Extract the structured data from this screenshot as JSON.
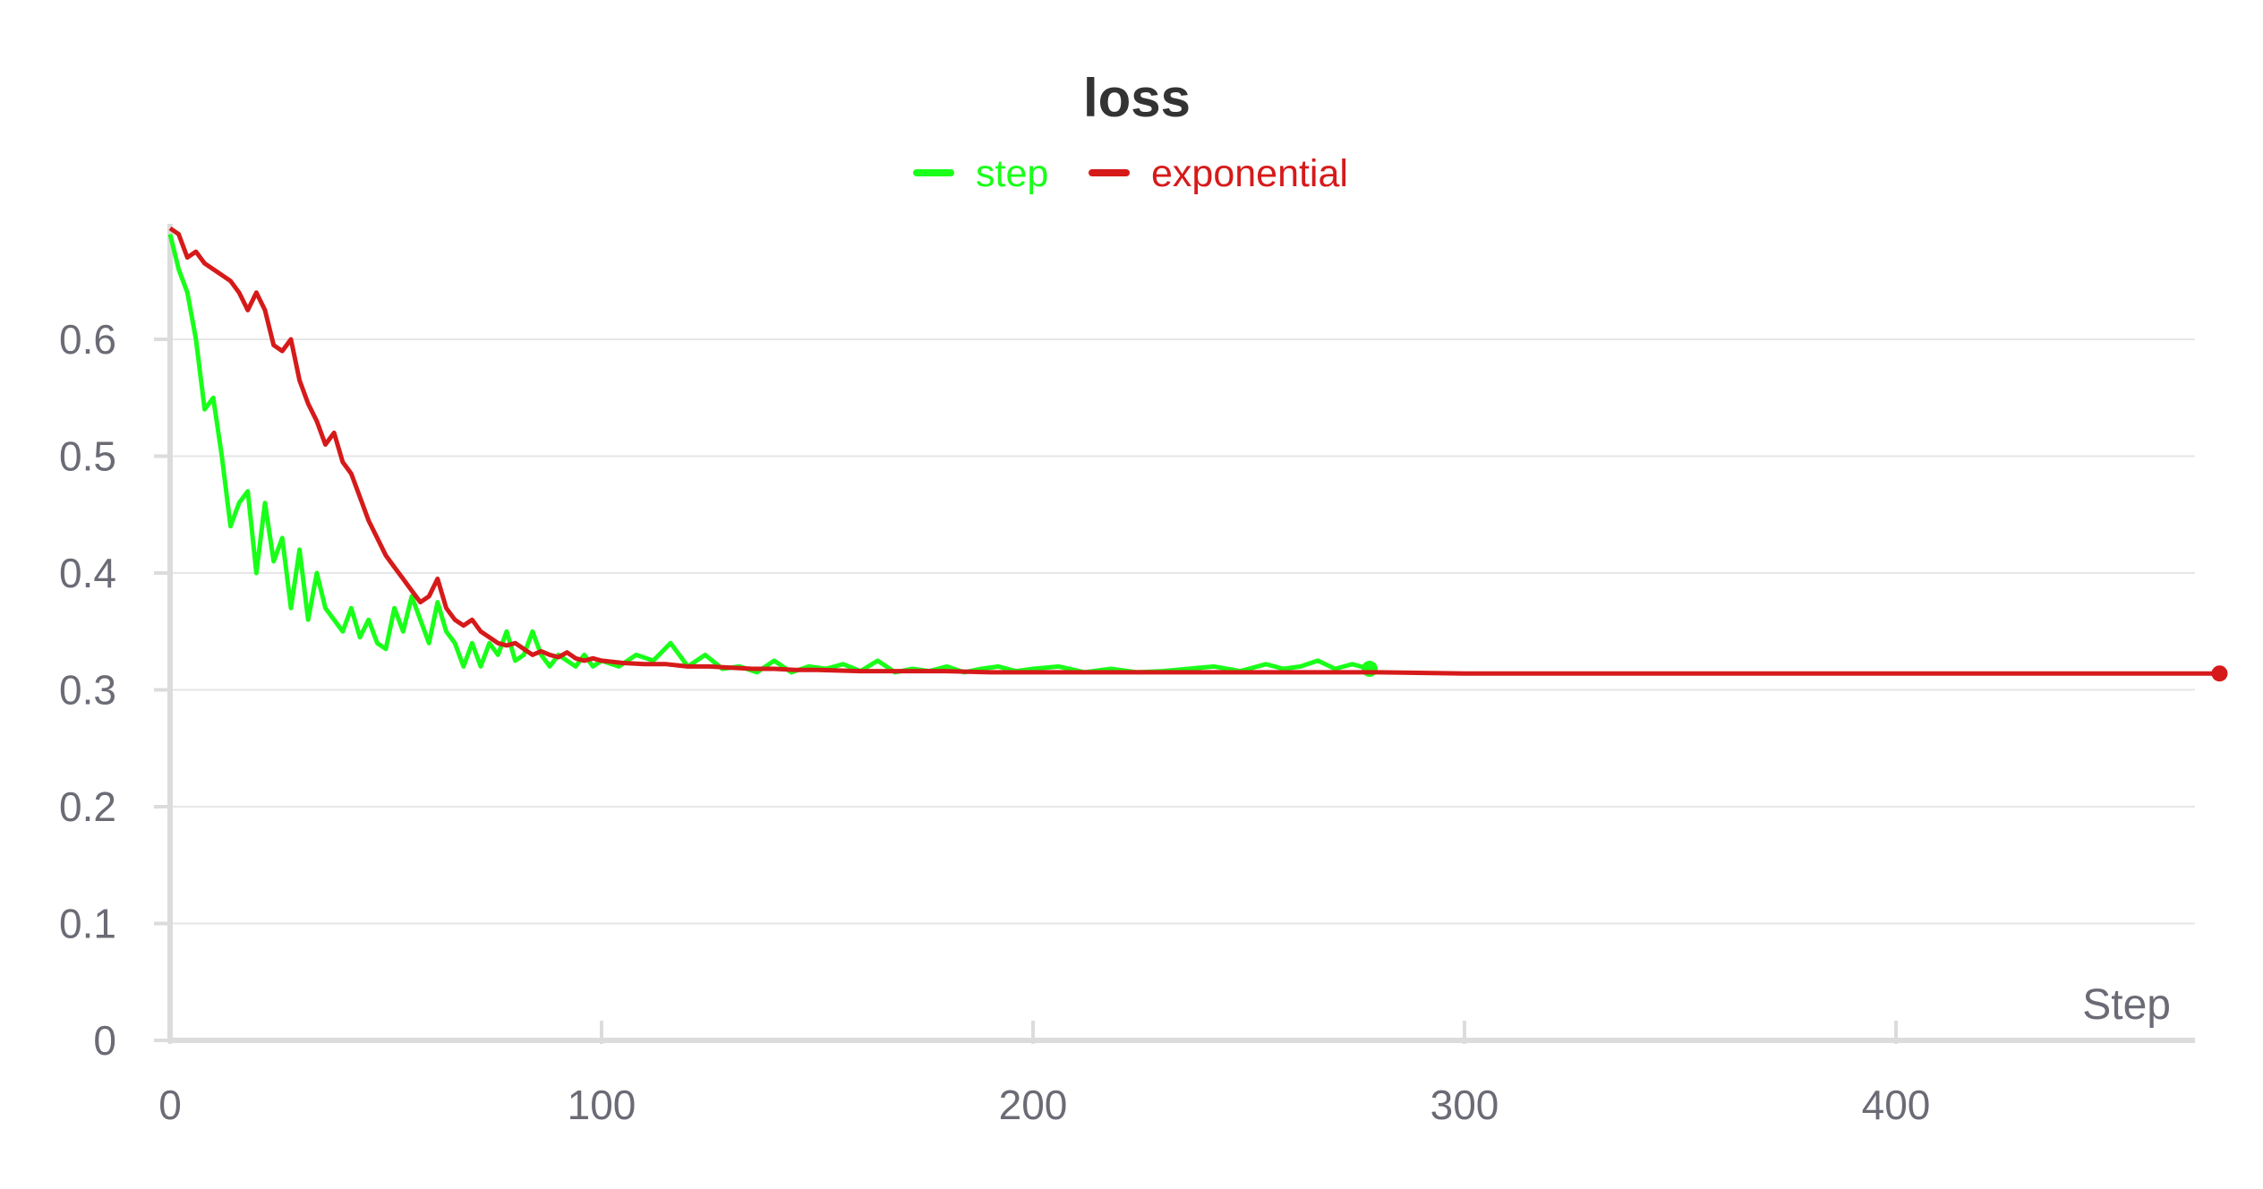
{
  "chart_data": {
    "type": "line",
    "title": "loss",
    "xlabel": "Step",
    "ylabel": "",
    "xlim": [
      0,
      475
    ],
    "ylim": [
      0,
      0.7
    ],
    "x_ticks": [
      0,
      100,
      200,
      300,
      400
    ],
    "y_ticks": [
      0,
      0.1,
      0.2,
      0.3,
      0.4,
      0.5,
      0.6
    ],
    "grid": true,
    "legend_position": "top-center",
    "series": [
      {
        "name": "step",
        "color": "#19ff19",
        "end_marker": true,
        "x": [
          0,
          2,
          4,
          6,
          8,
          10,
          12,
          14,
          16,
          18,
          20,
          22,
          24,
          26,
          28,
          30,
          32,
          34,
          36,
          38,
          40,
          42,
          44,
          46,
          48,
          50,
          52,
          54,
          56,
          58,
          60,
          62,
          64,
          66,
          68,
          70,
          72,
          74,
          76,
          78,
          80,
          82,
          84,
          86,
          88,
          90,
          92,
          94,
          96,
          98,
          100,
          104,
          108,
          112,
          116,
          120,
          124,
          128,
          132,
          136,
          140,
          144,
          148,
          152,
          156,
          160,
          164,
          168,
          172,
          176,
          180,
          184,
          188,
          192,
          196,
          200,
          206,
          212,
          218,
          224,
          230,
          236,
          242,
          248,
          254,
          258,
          262,
          266,
          270,
          274,
          278
        ],
        "values": [
          0.69,
          0.66,
          0.64,
          0.6,
          0.54,
          0.55,
          0.5,
          0.44,
          0.46,
          0.47,
          0.4,
          0.46,
          0.41,
          0.43,
          0.37,
          0.42,
          0.36,
          0.4,
          0.37,
          0.36,
          0.35,
          0.37,
          0.345,
          0.36,
          0.34,
          0.335,
          0.37,
          0.35,
          0.38,
          0.36,
          0.34,
          0.375,
          0.35,
          0.34,
          0.32,
          0.34,
          0.32,
          0.34,
          0.33,
          0.35,
          0.325,
          0.33,
          0.35,
          0.33,
          0.32,
          0.33,
          0.325,
          0.32,
          0.33,
          0.32,
          0.325,
          0.32,
          0.33,
          0.325,
          0.34,
          0.32,
          0.33,
          0.318,
          0.32,
          0.315,
          0.325,
          0.315,
          0.32,
          0.318,
          0.322,
          0.316,
          0.325,
          0.315,
          0.318,
          0.316,
          0.32,
          0.315,
          0.318,
          0.32,
          0.316,
          0.318,
          0.32,
          0.315,
          0.318,
          0.315,
          0.316,
          0.318,
          0.32,
          0.316,
          0.322,
          0.318,
          0.32,
          0.325,
          0.318,
          0.322,
          0.318
        ]
      },
      {
        "name": "exponential",
        "color": "#d61a1a",
        "end_marker": true,
        "x": [
          0,
          2,
          4,
          6,
          8,
          10,
          12,
          14,
          16,
          18,
          20,
          22,
          24,
          26,
          28,
          30,
          32,
          34,
          36,
          38,
          40,
          42,
          44,
          46,
          48,
          50,
          52,
          54,
          56,
          58,
          60,
          62,
          64,
          66,
          68,
          70,
          72,
          74,
          76,
          78,
          80,
          82,
          84,
          86,
          88,
          90,
          92,
          94,
          96,
          98,
          100,
          105,
          110,
          115,
          120,
          125,
          130,
          135,
          140,
          145,
          150,
          160,
          170,
          180,
          190,
          200,
          220,
          240,
          260,
          280,
          300,
          350,
          400,
          450,
          475
        ],
        "values": [
          0.695,
          0.69,
          0.67,
          0.675,
          0.665,
          0.66,
          0.655,
          0.65,
          0.64,
          0.625,
          0.64,
          0.625,
          0.595,
          0.59,
          0.6,
          0.565,
          0.545,
          0.53,
          0.51,
          0.52,
          0.495,
          0.485,
          0.465,
          0.445,
          0.43,
          0.415,
          0.405,
          0.395,
          0.385,
          0.375,
          0.38,
          0.395,
          0.37,
          0.36,
          0.355,
          0.36,
          0.35,
          0.345,
          0.34,
          0.338,
          0.34,
          0.335,
          0.33,
          0.333,
          0.33,
          0.328,
          0.332,
          0.327,
          0.325,
          0.327,
          0.325,
          0.323,
          0.322,
          0.322,
          0.32,
          0.32,
          0.319,
          0.318,
          0.318,
          0.317,
          0.317,
          0.316,
          0.316,
          0.316,
          0.315,
          0.315,
          0.315,
          0.315,
          0.315,
          0.315,
          0.314,
          0.314,
          0.314,
          0.314,
          0.314
        ]
      }
    ]
  }
}
